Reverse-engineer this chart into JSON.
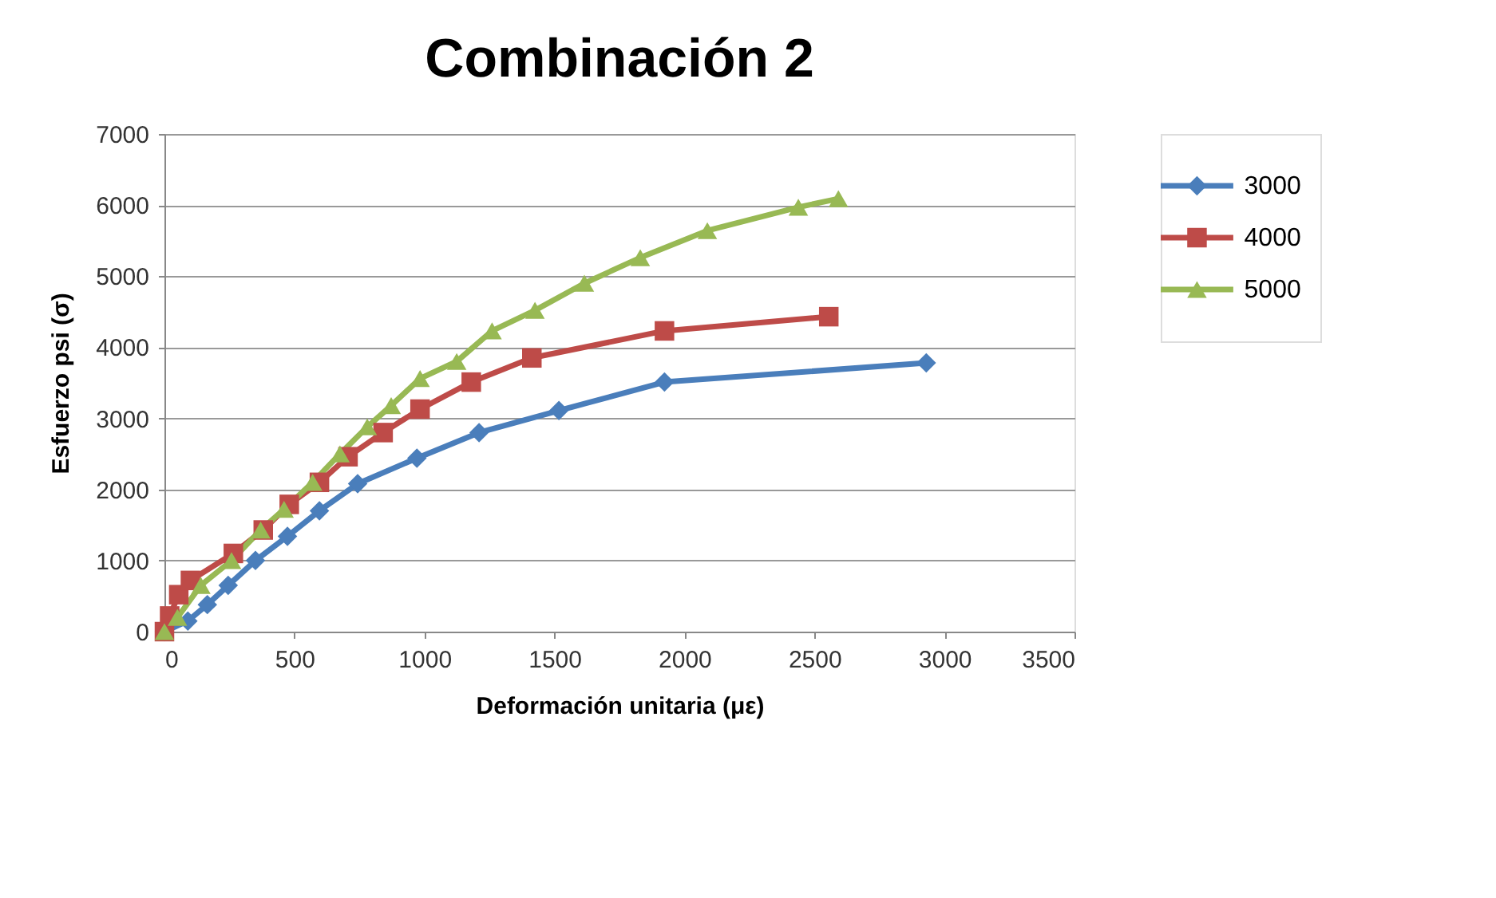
{
  "chart_data": {
    "type": "line",
    "title": "Combinación 2",
    "xlabel": "Deformación unitaria (με)",
    "ylabel": "Esfuerzo psi (σ)",
    "xlim": [
      0,
      3500
    ],
    "xticks": [
      0,
      500,
      1000,
      1500,
      2000,
      2500,
      3000,
      3500
    ],
    "ylim": [
      0,
      7000
    ],
    "yticks": [
      0,
      1000,
      2000,
      3000,
      4000,
      5000,
      6000,
      7000
    ],
    "grid": "y",
    "legend": "right",
    "line_style": "solid",
    "series": [
      {
        "name": "3000",
        "color": "#4a7ebb",
        "marker": "diamond",
        "x": [
          0,
          90,
          165,
          245,
          350,
          473,
          596,
          743,
          971,
          1210,
          1517,
          1923,
          2930
        ],
        "values": [
          0,
          150,
          380,
          650,
          1000,
          1340,
          1700,
          2080,
          2440,
          2800,
          3110,
          3510,
          3780
        ]
      },
      {
        "name": "4000",
        "color": "#be4b48",
        "marker": "square",
        "x": [
          0,
          20,
          55,
          100,
          265,
          380,
          480,
          596,
          706,
          841,
          983,
          1180,
          1413,
          1923,
          2555
        ],
        "values": [
          0,
          220,
          520,
          720,
          1100,
          1430,
          1790,
          2100,
          2460,
          2800,
          3130,
          3510,
          3850,
          4230,
          4430
        ]
      },
      {
        "name": "5000",
        "color": "#98b954",
        "marker": "triangle",
        "x": [
          0,
          50,
          140,
          258,
          370,
          460,
          570,
          675,
          780,
          872,
          983,
          1124,
          1260,
          1425,
          1615,
          1830,
          2088,
          2438,
          2592
        ],
        "values": [
          0,
          200,
          650,
          1000,
          1430,
          1720,
          2100,
          2500,
          2880,
          3180,
          3560,
          3800,
          4230,
          4520,
          4900,
          5260,
          5640,
          5970,
          6090
        ]
      }
    ]
  }
}
